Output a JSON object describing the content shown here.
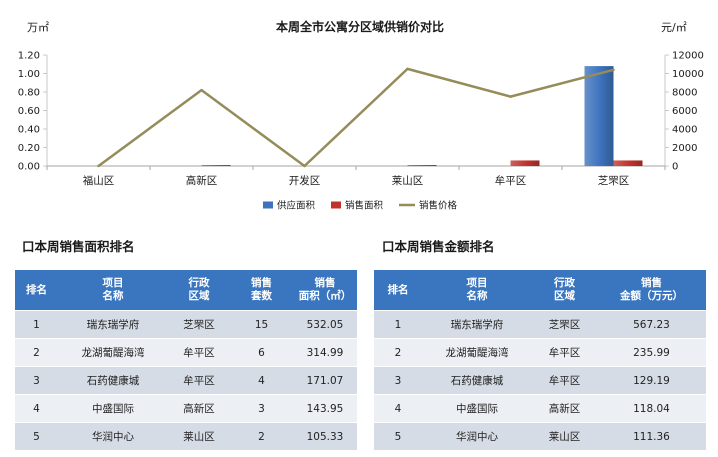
{
  "chart_data": {
    "type": "bar",
    "title": "本周全市公寓分区域供销价对比",
    "categories": [
      "福山区",
      "高新区",
      "开发区",
      "莱山区",
      "牟平区",
      "芝罘区"
    ],
    "y_left": {
      "unit": "万㎡",
      "range": [
        0,
        1.2
      ],
      "ticks": [
        "0.00",
        "0.20",
        "0.40",
        "0.60",
        "0.80",
        "1.00",
        "1.20"
      ]
    },
    "y_right": {
      "unit": "元/㎡",
      "range": [
        0,
        12000
      ],
      "ticks": [
        "0",
        "2000",
        "4000",
        "6000",
        "8000",
        "10000",
        "12000"
      ]
    },
    "series": [
      {
        "name": "供应面积",
        "type": "bar",
        "axis": "left",
        "color": "#3D72BC",
        "values": [
          0,
          0,
          0,
          0,
          0,
          1.08
        ]
      },
      {
        "name": "销售面积",
        "type": "bar",
        "axis": "left",
        "color": "#C0332D",
        "values": [
          0,
          0.01,
          0,
          0.01,
          0.06,
          0.06
        ]
      },
      {
        "name": "销售价格",
        "type": "line",
        "axis": "right",
        "color": "#958C5A",
        "values": [
          0,
          8200,
          0,
          10500,
          7500,
          10400
        ]
      }
    ],
    "legend": "bottom",
    "grid": false
  },
  "sales_area_ranking": {
    "title": "口本周销售面积排名",
    "headers": [
      [
        "排名"
      ],
      [
        "项目",
        "名称"
      ],
      [
        "行政",
        "区域"
      ],
      [
        "销售",
        "套数"
      ],
      [
        "销售",
        "面积（㎡）"
      ]
    ],
    "rows": [
      [
        "1",
        "瑞东瑞学府",
        "芝罘区",
        "15",
        "532.05"
      ],
      [
        "2",
        "龙湖葡醍海湾",
        "牟平区",
        "6",
        "314.99"
      ],
      [
        "3",
        "石药健康城",
        "牟平区",
        "4",
        "171.07"
      ],
      [
        "4",
        "中盛国际",
        "高新区",
        "3",
        "143.95"
      ],
      [
        "5",
        "华润中心",
        "莱山区",
        "2",
        "105.33"
      ]
    ]
  },
  "sales_amount_ranking": {
    "title": "口本周销售金额排名",
    "headers": [
      [
        "排名"
      ],
      [
        "项目",
        "名称"
      ],
      [
        "行政",
        "区域"
      ],
      [
        "销售",
        "金额（万元）"
      ]
    ],
    "rows": [
      [
        "1",
        "瑞东瑞学府",
        "芝罘区",
        "567.23"
      ],
      [
        "2",
        "龙湖葡醍海湾",
        "牟平区",
        "235.99"
      ],
      [
        "3",
        "石药健康城",
        "牟平区",
        "129.19"
      ],
      [
        "4",
        "中盛国际",
        "高新区",
        "118.04"
      ],
      [
        "5",
        "华润中心",
        "莱山区",
        "111.36"
      ]
    ]
  },
  "colors": {
    "table_header": "#3A76C0",
    "row_odd": "#D6DCE5",
    "row_even": "#ECEFF4"
  }
}
